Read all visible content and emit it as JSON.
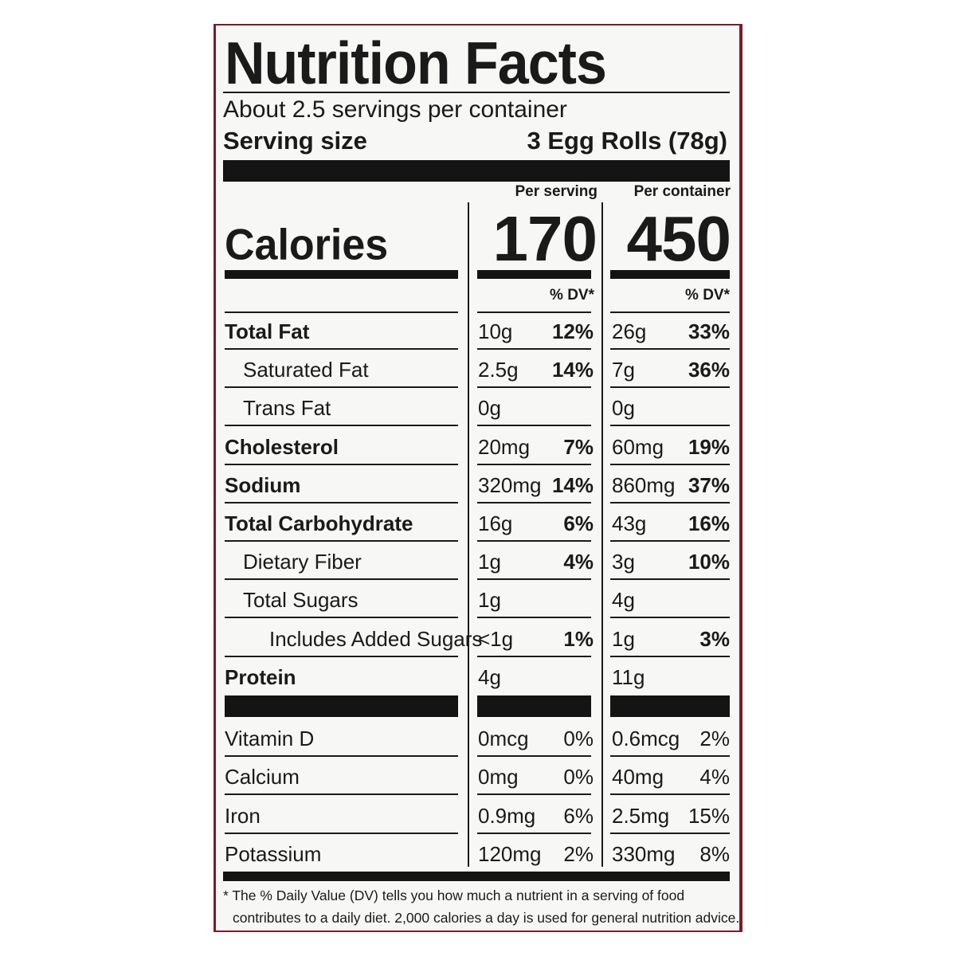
{
  "label": {
    "title": "Nutrition Facts",
    "servings_per_container": "About 2.5 servings per container",
    "serving_size_label": "Serving size",
    "serving_size_value": "3 Egg Rolls (78g)",
    "col_per_serving": "Per serving",
    "col_per_container": "Per container",
    "calories_label": "Calories",
    "calories_per_serving": "170",
    "calories_per_container": "450",
    "dv_header": "% DV*",
    "nutrients": [
      {
        "name": "Total Fat",
        "serving_amount": "10g",
        "serving_dv": "12%",
        "container_amount": "26g",
        "container_dv": "33%"
      },
      {
        "name": "Saturated Fat",
        "serving_amount": "2.5g",
        "serving_dv": "14%",
        "container_amount": "7g",
        "container_dv": "36%"
      },
      {
        "name": "Trans Fat",
        "serving_amount": "0g",
        "serving_dv": "",
        "container_amount": "0g",
        "container_dv": ""
      },
      {
        "name": "Cholesterol",
        "serving_amount": "20mg",
        "serving_dv": "7%",
        "container_amount": "60mg",
        "container_dv": "19%"
      },
      {
        "name": "Sodium",
        "serving_amount": "320mg",
        "serving_dv": "14%",
        "container_amount": "860mg",
        "container_dv": "37%"
      },
      {
        "name": "Total Carbohydrate",
        "serving_amount": "16g",
        "serving_dv": "6%",
        "container_amount": "43g",
        "container_dv": "16%"
      },
      {
        "name": "Dietary Fiber",
        "serving_amount": "1g",
        "serving_dv": "4%",
        "container_amount": "3g",
        "container_dv": "10%"
      },
      {
        "name": "Total Sugars",
        "serving_amount": "1g",
        "serving_dv": "",
        "container_amount": "4g",
        "container_dv": ""
      },
      {
        "name": "Includes Added Sugars",
        "serving_amount": "<1g",
        "serving_dv": "1%",
        "container_amount": "1g",
        "container_dv": "3%"
      },
      {
        "name": "Protein",
        "serving_amount": "4g",
        "serving_dv": "",
        "container_amount": "11g",
        "container_dv": ""
      }
    ],
    "vitamins": [
      {
        "name": "Vitamin D",
        "serving_amount": "0mcg",
        "serving_dv": "0%",
        "container_amount": "0.6mcg",
        "container_dv": "2%"
      },
      {
        "name": "Calcium",
        "serving_amount": "0mg",
        "serving_dv": "0%",
        "container_amount": "40mg",
        "container_dv": "4%"
      },
      {
        "name": "Iron",
        "serving_amount": "0.9mg",
        "serving_dv": "6%",
        "container_amount": "2.5mg",
        "container_dv": "15%"
      },
      {
        "name": "Potassium",
        "serving_amount": "120mg",
        "serving_dv": "2%",
        "container_amount": "330mg",
        "container_dv": "8%"
      }
    ],
    "footnote_line1": "* The % Daily Value (DV) tells you how much a nutrient in a serving of food",
    "footnote_line2": "contributes to a daily diet. 2,000 calories a day is used for general nutrition advice."
  },
  "colors": {
    "ink": "#141414",
    "background": "#f7f7f5",
    "border": "#7a1c2c"
  }
}
